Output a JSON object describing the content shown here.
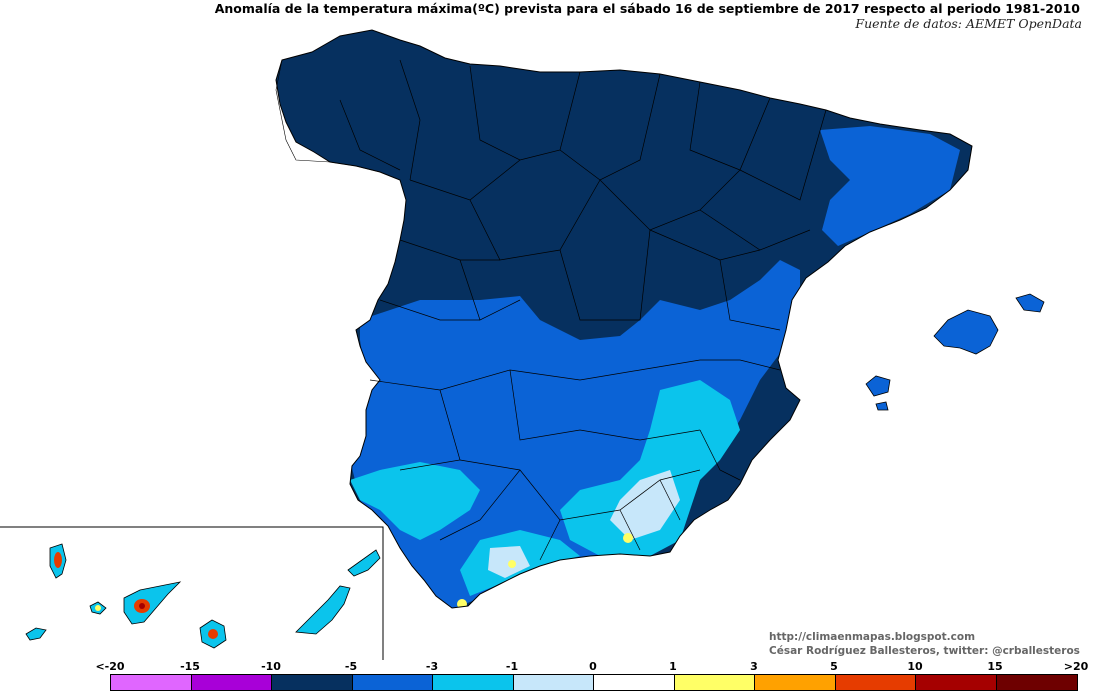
{
  "title": "Anomalía de la temperatura máxima(ºC) prevista para el sábado 16 de septiembre de 2017 respecto al periodo 1981-2010",
  "source": "Fuente de datos: AEMET OpenData",
  "credit": {
    "blog": "http://climaenmapas.blogspot.com",
    "author": "César Rodríguez Ballesteros, twitter: @crballesteros"
  },
  "legend": {
    "labels": [
      "<-20",
      "-15",
      "-10",
      "-5",
      "-3",
      "-1",
      "0",
      "1",
      "3",
      "5",
      "10",
      "15",
      ">20"
    ],
    "colors": [
      "#e066ff",
      "#a800d8",
      "#06305f",
      "#0b63d6",
      "#0bc4ec",
      "#c7e7fa",
      "#ffffff",
      "#ffff66",
      "#ffa100",
      "#e63c00",
      "#a50000",
      "#6e0000",
      "#7a4a00"
    ]
  },
  "map_colors": {
    "very_cold": "#06305f",
    "cold": "#0b63d6",
    "cool": "#0bc4ec",
    "slightly_cool": "#c7e7fa",
    "neutral": "#ffffff",
    "warm": "#ffff66",
    "hot": "#ffa100",
    "very_hot": "#e63c00",
    "extreme": "#a50000",
    "purple": "#e066ff",
    "border": "#000000"
  }
}
